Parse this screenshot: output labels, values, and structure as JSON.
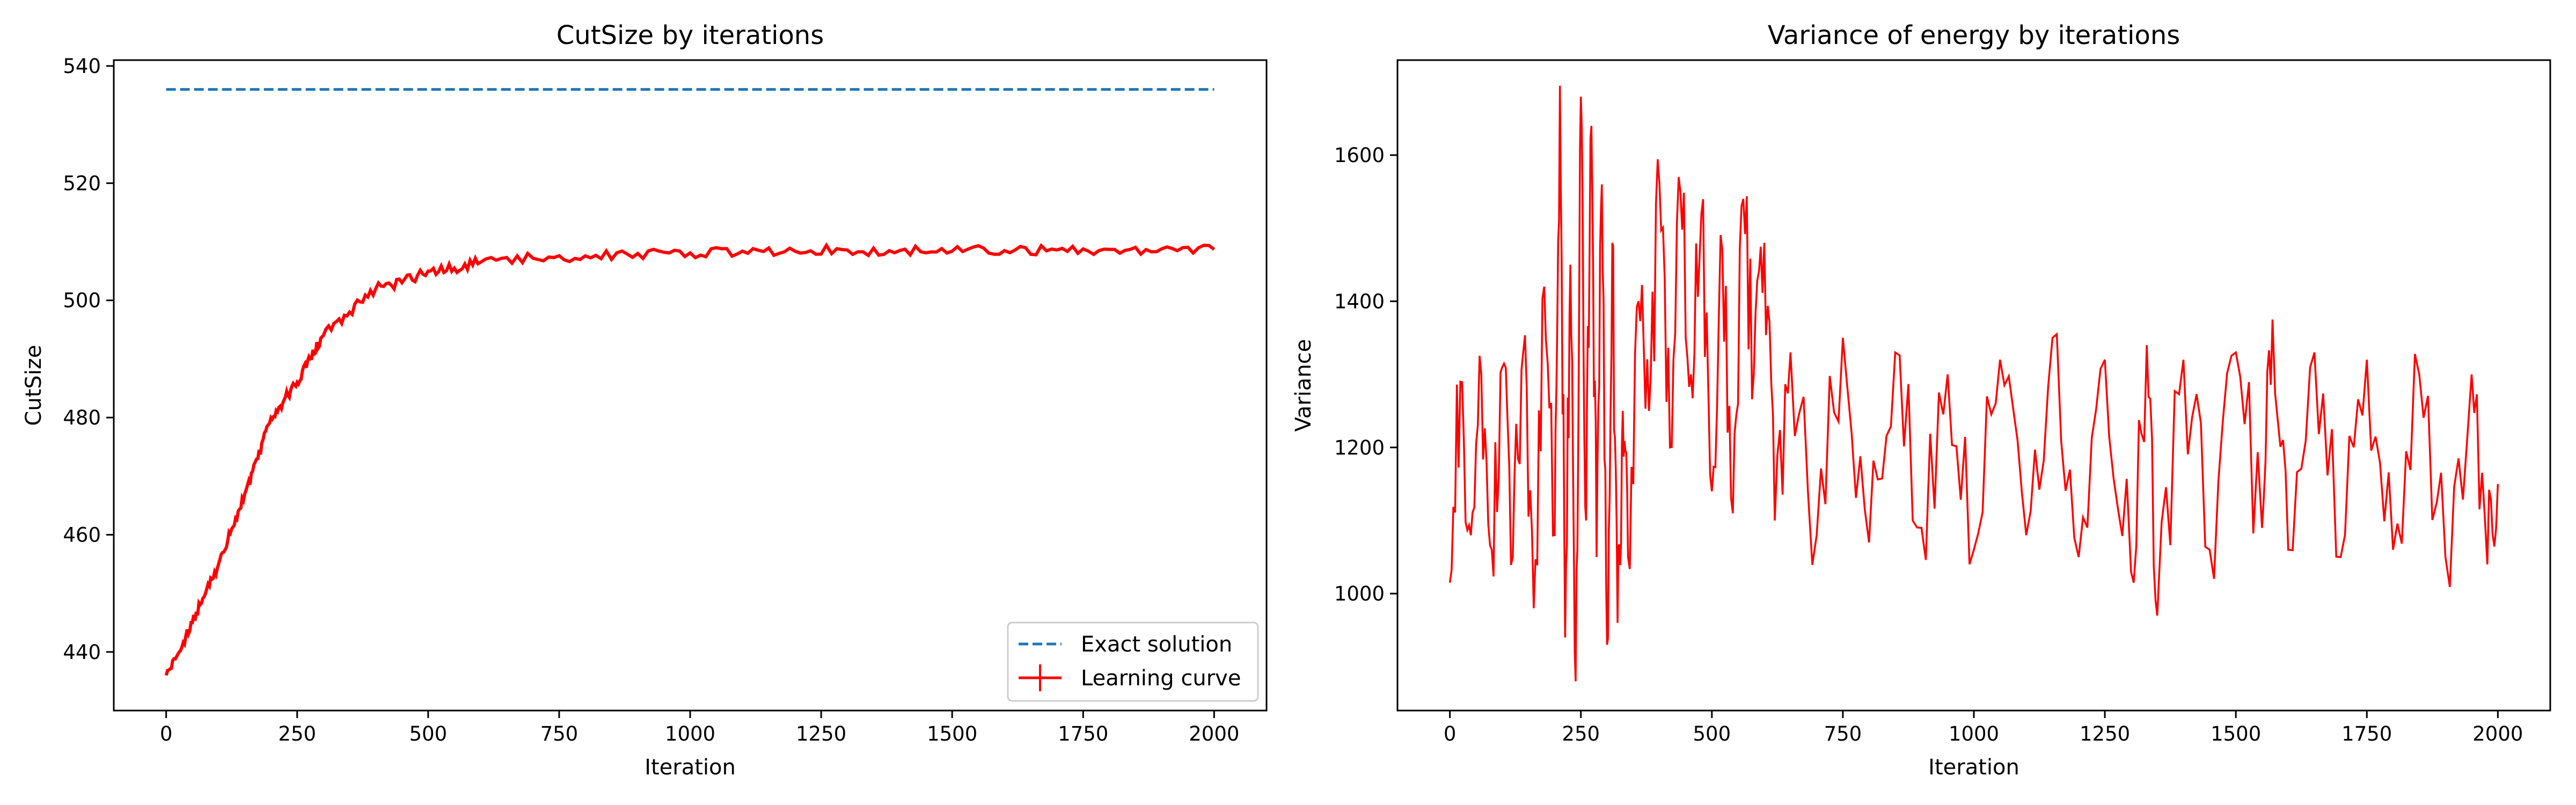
{
  "chart_data": [
    {
      "type": "line",
      "title": "CutSize by iterations",
      "xlabel": "Iteration",
      "ylabel": "CutSize",
      "xlim": [
        -100,
        2100
      ],
      "ylim": [
        430,
        541
      ],
      "xticks": [
        0,
        250,
        500,
        750,
        1000,
        1250,
        1500,
        1750,
        2000
      ],
      "yticks": [
        440,
        460,
        480,
        500,
        520,
        540
      ],
      "legend": {
        "placement": "lower-right"
      },
      "series": [
        {
          "name": "Exact solution",
          "style": "dashed",
          "color": "#1f77b4",
          "x": [
            0,
            2000
          ],
          "y": [
            536,
            536
          ]
        },
        {
          "name": "Learning curve",
          "style": "solid-errorbar",
          "color": "#ff0000",
          "x": [
            0,
            25,
            50,
            75,
            100,
            125,
            150,
            175,
            200,
            225,
            250,
            275,
            300,
            350,
            400,
            450,
            500,
            550,
            600,
            700,
            800,
            900,
            1000,
            1100,
            1200,
            1300,
            1400,
            1500,
            1600,
            1700,
            1800,
            1900,
            2000
          ],
          "y": [
            436,
            440,
            445,
            450,
            455,
            461,
            467,
            473,
            480,
            483,
            486,
            490,
            494,
            498,
            502,
            503,
            505,
            505.5,
            506.5,
            507.2,
            507.6,
            508,
            508.1,
            508.4,
            508.4,
            508.6,
            508.5,
            508.4,
            508.5,
            508.6,
            508.7,
            508.8,
            508.7
          ]
        }
      ]
    },
    {
      "type": "line",
      "title": "Variance of energy by iterations",
      "xlabel": "Iteration",
      "ylabel": "Variance",
      "xlim": [
        -100,
        2100
      ],
      "ylim": [
        840,
        1730
      ],
      "xticks": [
        0,
        250,
        500,
        750,
        1000,
        1250,
        1500,
        1750,
        2000
      ],
      "yticks": [
        1000,
        1200,
        1400,
        1600
      ],
      "series": [
        {
          "name": "Variance",
          "color": "#ff0000",
          "x": [
            0,
            20,
            40,
            60,
            80,
            100,
            120,
            140,
            160,
            180,
            200,
            210,
            220,
            230,
            240,
            250,
            260,
            270,
            280,
            290,
            300,
            310,
            320,
            330,
            340,
            360,
            380,
            400,
            420,
            440,
            460,
            480,
            500,
            520,
            540,
            560,
            580,
            600,
            620,
            650,
            700,
            750,
            800,
            850,
            900,
            950,
            1000,
            1050,
            1100,
            1150,
            1200,
            1250,
            1300,
            1330,
            1350,
            1400,
            1450,
            1500,
            1550,
            1570,
            1600,
            1650,
            1700,
            1750,
            1800,
            1850,
            1900,
            1950,
            1980,
            2000
          ],
          "y": [
            1015,
            1290,
            1080,
            1300,
            1060,
            1310,
            1050,
            1330,
            980,
            1420,
            1080,
            1695,
            940,
            1450,
            880,
            1680,
            1100,
            1640,
            1050,
            1560,
            930,
            1480,
            960,
            1250,
            1050,
            1400,
            1250,
            1560,
            1200,
            1550,
            1300,
            1520,
            1140,
            1470,
            1110,
            1540,
            1300,
            1480,
            1100,
            1330,
            1080,
            1350,
            1070,
            1330,
            1090,
            1300,
            1060,
            1320,
            1080,
            1350,
            1050,
            1320,
            1030,
            1340,
            970,
            1320,
            1060,
            1330,
            1090,
            1375,
            1060,
            1330,
            1050,
            1320,
            1060,
            1300,
            1050,
            1300,
            1040,
            1150
          ]
        }
      ]
    }
  ]
}
